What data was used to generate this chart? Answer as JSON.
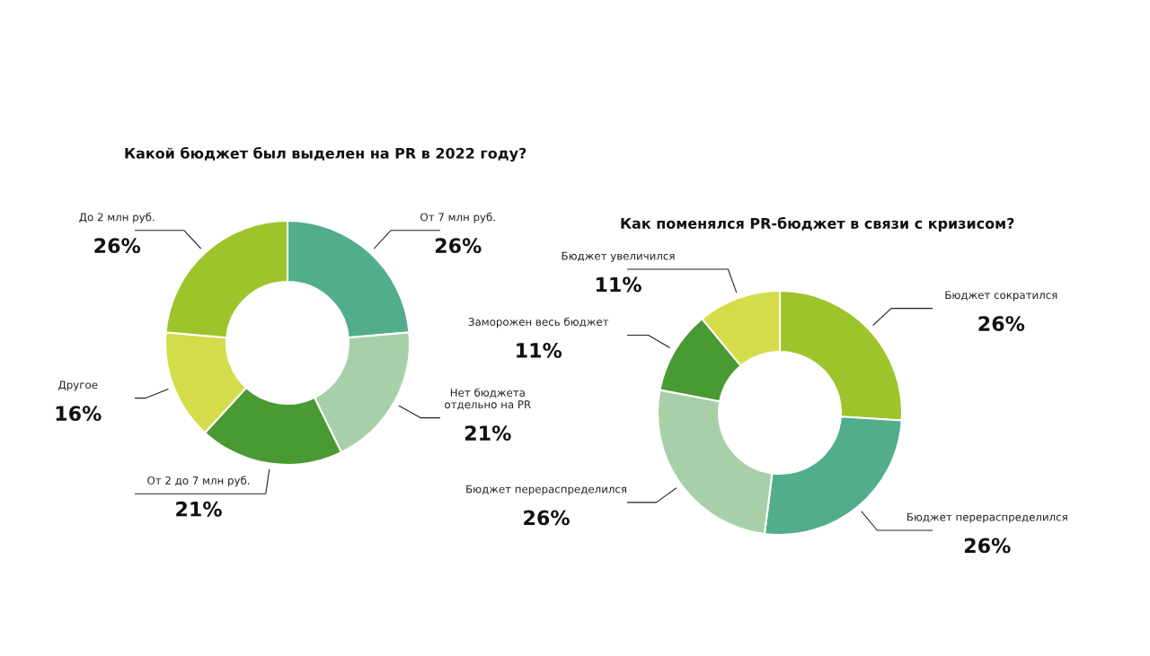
{
  "chart_data": [
    {
      "type": "donut",
      "title": "Какой бюджет был выделен на PR в 2022 году?",
      "categories": [
        "От 7 млн руб.",
        "Нет бюджета\nотдельно на PR",
        "От 2 до 7 млн руб.",
        "Другое",
        "До 2 млн руб."
      ],
      "values": [
        26,
        21,
        21,
        16,
        26
      ],
      "value_labels": [
        "26%",
        "21%",
        "21%",
        "16%",
        "26%"
      ],
      "colors": [
        "#52ad8a",
        "#a8d0a8",
        "#4a9a34",
        "#d4dc4a",
        "#9dc42a"
      ]
    },
    {
      "type": "donut",
      "title": "Как поменялся PR-бюджет в связи с кризисом?",
      "categories": [
        "Бюджет сократился",
        "Бюджет перераспределился",
        "Бюджет перераспределился",
        "Заморожен весь бюджет",
        "Бюджет увеличился"
      ],
      "values": [
        26,
        26,
        26,
        11,
        11
      ],
      "value_labels": [
        "26%",
        "26%",
        "26%",
        "11%",
        "11%"
      ],
      "colors": [
        "#9dc42a",
        "#52ad8a",
        "#a8d0a8",
        "#4a9a34",
        "#d4dc4a"
      ]
    }
  ]
}
